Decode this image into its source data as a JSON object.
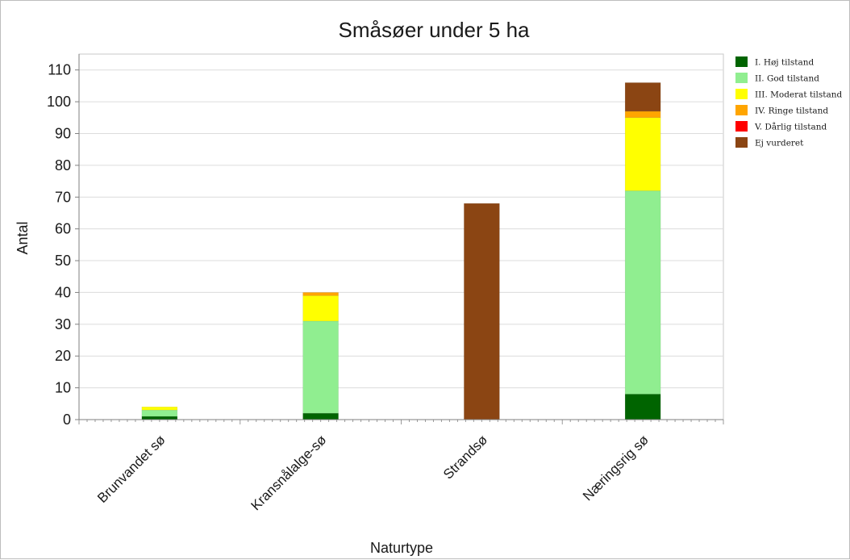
{
  "chart_data": {
    "type": "bar",
    "stacked": true,
    "title": "Småsøer under 5 ha",
    "xlabel": "Naturtype",
    "ylabel": "Antal",
    "ylim": [
      0,
      115
    ],
    "yticks": [
      0,
      10,
      20,
      30,
      40,
      50,
      60,
      70,
      80,
      90,
      100,
      110
    ],
    "grid": true,
    "legend_position": "right",
    "categories": [
      "Brunvandet sø",
      "Kransnålalge-sø",
      "Strandsø",
      "Næringsrig sø"
    ],
    "series": [
      {
        "name": "I. Høj tilstand",
        "color": "#006400",
        "values": [
          1,
          2,
          0,
          8
        ]
      },
      {
        "name": "II. God tilstand",
        "color": "#90EE90",
        "values": [
          2,
          29,
          0,
          64
        ]
      },
      {
        "name": "III. Moderat tilstand",
        "color": "#FFFF00",
        "values": [
          1,
          8,
          0,
          23
        ]
      },
      {
        "name": "IV. Ringe tilstand",
        "color": "#FFA500",
        "values": [
          0,
          1,
          0,
          2
        ]
      },
      {
        "name": "V. Dårlig tilstand",
        "color": "#FF0000",
        "values": [
          0,
          0,
          0,
          0
        ]
      },
      {
        "name": "Ej vurderet",
        "color": "#8B4513",
        "values": [
          0,
          0,
          68,
          9
        ]
      }
    ]
  }
}
